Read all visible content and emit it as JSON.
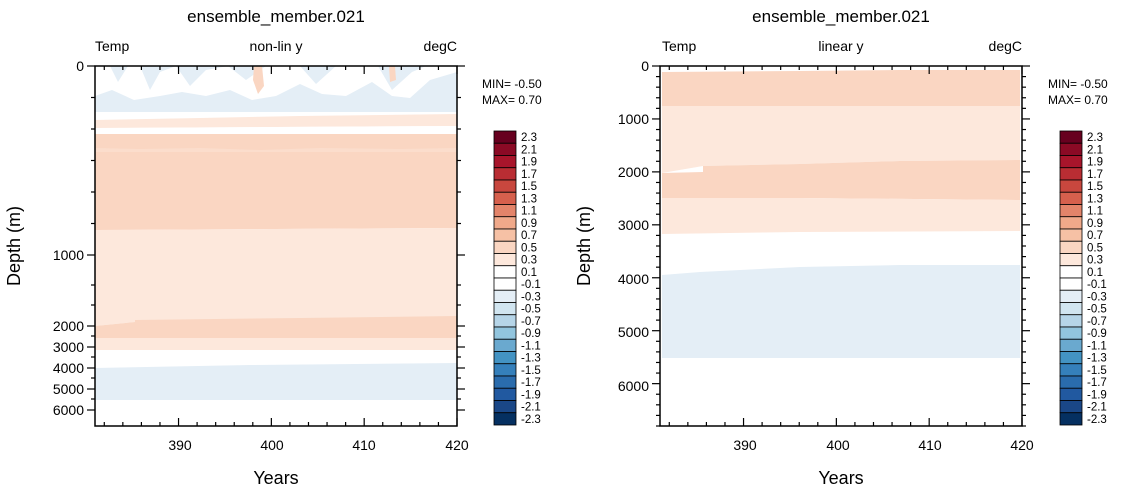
{
  "chart_data": [
    {
      "type": "heatmap",
      "title": "ensemble_member.021",
      "left_label": "Temp",
      "center_label": "non-lin y",
      "right_label": "degC",
      "xlabel": "Years",
      "ylabel": "Depth (m)",
      "xlim": [
        381,
        420
      ],
      "ylim": [
        6500,
        0
      ],
      "y_scale": "non-linear",
      "x_ticks": [
        390,
        400,
        410,
        420
      ],
      "y_ticks": [
        0,
        1000,
        2000,
        3000,
        4000,
        5000,
        6000
      ],
      "min_text": "MIN= -0.50",
      "max_text": "MAX=  0.70",
      "regions": [
        {
          "from_depth": 0,
          "to_depth": 180,
          "value_range": "-0.3 to 0.1",
          "note": "near-surface mix of light blue and white, small orange patches near 386, 412"
        },
        {
          "from_depth": 180,
          "to_depth": 230,
          "value_range": "0.1 to 0.3"
        },
        {
          "from_depth": 230,
          "to_depth": 850,
          "value_range": "0.5 to 0.7"
        },
        {
          "from_depth": 850,
          "to_depth": 1950,
          "value_range": "0.3 to 0.5"
        },
        {
          "from_depth": 1950,
          "to_depth": 2500,
          "value_range": "0.5 to 0.7"
        },
        {
          "from_depth": 2500,
          "to_depth": 3100,
          "value_range": "0.3 to 0.5"
        },
        {
          "from_depth": 3100,
          "to_depth": 3800,
          "value_range": "-0.1 to 0.1"
        },
        {
          "from_depth": 3800,
          "to_depth": 5500,
          "value_range": "-0.3 to -0.1"
        },
        {
          "from_depth": 5500,
          "to_depth": 6500,
          "value_range": "-0.1 to 0.1"
        }
      ]
    },
    {
      "type": "heatmap",
      "title": "ensemble_member.021",
      "left_label": "Temp",
      "center_label": "linear y",
      "right_label": "degC",
      "xlabel": "Years",
      "ylabel": "Depth (m)",
      "xlim": [
        381,
        420
      ],
      "ylim": [
        6800,
        0
      ],
      "y_scale": "linear",
      "x_ticks": [
        390,
        400,
        410,
        420
      ],
      "y_ticks": [
        0,
        1000,
        2000,
        3000,
        4000,
        5000,
        6000
      ],
      "min_text": "MIN= -0.50",
      "max_text": "MAX=  0.70",
      "regions": [
        {
          "from_depth": 0,
          "to_depth": 100,
          "value_range": "-0.1 to 0.1"
        },
        {
          "from_depth": 100,
          "to_depth": 750,
          "value_range": "0.5 to 0.7"
        },
        {
          "from_depth": 750,
          "to_depth": 1800,
          "value_range": "0.3 to 0.5"
        },
        {
          "from_depth": 1800,
          "to_depth": 2500,
          "value_range": "0.5 to 0.7"
        },
        {
          "from_depth": 2500,
          "to_depth": 3100,
          "value_range": "0.3 to 0.5"
        },
        {
          "from_depth": 3100,
          "to_depth": 3800,
          "value_range": "-0.1 to 0.1"
        },
        {
          "from_depth": 3800,
          "to_depth": 5500,
          "value_range": "-0.3 to -0.1"
        },
        {
          "from_depth": 5500,
          "to_depth": 6800,
          "value_range": "-0.1 to 0.1"
        }
      ]
    }
  ],
  "colorbar": {
    "labels": [
      "2.3",
      "2.1",
      "1.9",
      "1.7",
      "1.5",
      "1.3",
      "1.1",
      "0.9",
      "0.7",
      "0.5",
      "0.3",
      "0.1",
      "-0.1",
      "-0.3",
      "-0.5",
      "-0.7",
      "-0.9",
      "-1.1",
      "-1.3",
      "-1.5",
      "-1.7",
      "-1.9",
      "-2.1",
      "-2.3"
    ],
    "colors": [
      "#67001f",
      "#8b0a25",
      "#a8152b",
      "#b92d33",
      "#c8473e",
      "#d6604d",
      "#e3846a",
      "#f0a98a",
      "#f6c1a5",
      "#fad6c2",
      "#fde8dc",
      "#ffffff",
      "#ffffff",
      "#e4eef6",
      "#d1e5f0",
      "#b6d5e8",
      "#92c5de",
      "#6aa9cf",
      "#4393c3",
      "#3580bb",
      "#2a6cad",
      "#2159a0",
      "#1a4787",
      "#053061"
    ]
  }
}
